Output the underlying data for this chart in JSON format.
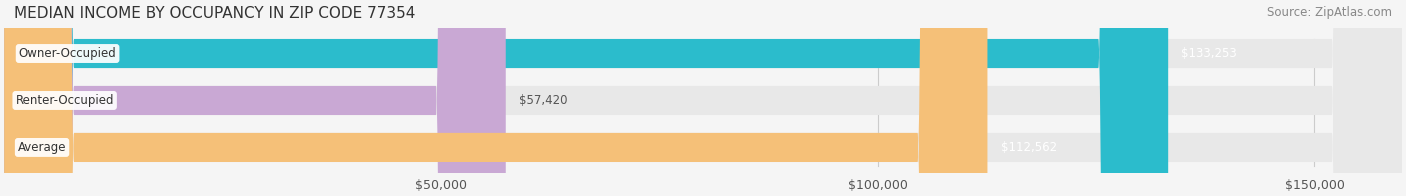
{
  "title": "MEDIAN INCOME BY OCCUPANCY IN ZIP CODE 77354",
  "source": "Source: ZipAtlas.com",
  "categories": [
    "Owner-Occupied",
    "Renter-Occupied",
    "Average"
  ],
  "values": [
    133253,
    57420,
    112562
  ],
  "bar_colors": [
    "#2bbccc",
    "#c9a8d4",
    "#f5c078"
  ],
  "label_colors": [
    "#ffffff",
    "#555555",
    "#555555"
  ],
  "value_labels": [
    "$133,253",
    "$57,420",
    "$112,562"
  ],
  "xlim": [
    0,
    160000
  ],
  "xticks": [
    0,
    50000,
    100000,
    150000
  ],
  "xticklabels": [
    "",
    "$50,000",
    "$100,000",
    "$150,000"
  ],
  "background_color": "#f5f5f5",
  "bar_background": "#e8e8e8",
  "bar_height": 0.62,
  "title_fontsize": 11,
  "source_fontsize": 8.5,
  "label_fontsize": 8.5,
  "value_fontsize": 8.5,
  "tick_fontsize": 9
}
